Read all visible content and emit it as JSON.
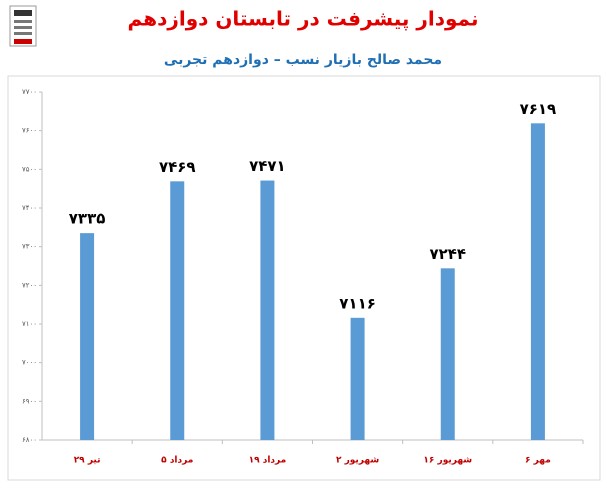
{
  "chart_data": {
    "type": "bar",
    "title": "نمودار پیشرفت در تابستان دوازدهم",
    "subtitle": "محمد صالح بازیار نسب – دوازدهم تجربی",
    "categories": [
      "۲۹ تیر",
      "۵ مرداد",
      "۱۹ مرداد",
      "۲ شهریور",
      "۱۶ شهریور",
      "۶ مهر"
    ],
    "values": [
      7335,
      7469,
      7471,
      7116,
      7244,
      7619
    ],
    "value_labels": [
      "۷۳۳۵",
      "۷۴۶۹",
      "۷۴۷۱",
      "۷۱۱۶",
      "۷۲۴۴",
      "۷۶۱۹"
    ],
    "color": "#5b9bd5",
    "ylim": [
      6800,
      7700
    ],
    "yticks": [
      {
        "value": 6800,
        "label": "۶۸۰۰"
      },
      {
        "value": 6900,
        "label": "۶۹۰۰"
      },
      {
        "value": 7000,
        "label": "۷۰۰۰"
      },
      {
        "value": 7100,
        "label": "۷۱۰۰"
      },
      {
        "value": 7200,
        "label": "۷۲۰۰"
      },
      {
        "value": 7300,
        "label": "۷۳۰۰"
      },
      {
        "value": 7400,
        "label": "۷۴۰۰"
      },
      {
        "value": 7500,
        "label": "۷۵۰۰"
      },
      {
        "value": 7600,
        "label": "۷۶۰۰"
      },
      {
        "value": 7700,
        "label": "۷۷۰۰"
      }
    ],
    "grid": false
  }
}
